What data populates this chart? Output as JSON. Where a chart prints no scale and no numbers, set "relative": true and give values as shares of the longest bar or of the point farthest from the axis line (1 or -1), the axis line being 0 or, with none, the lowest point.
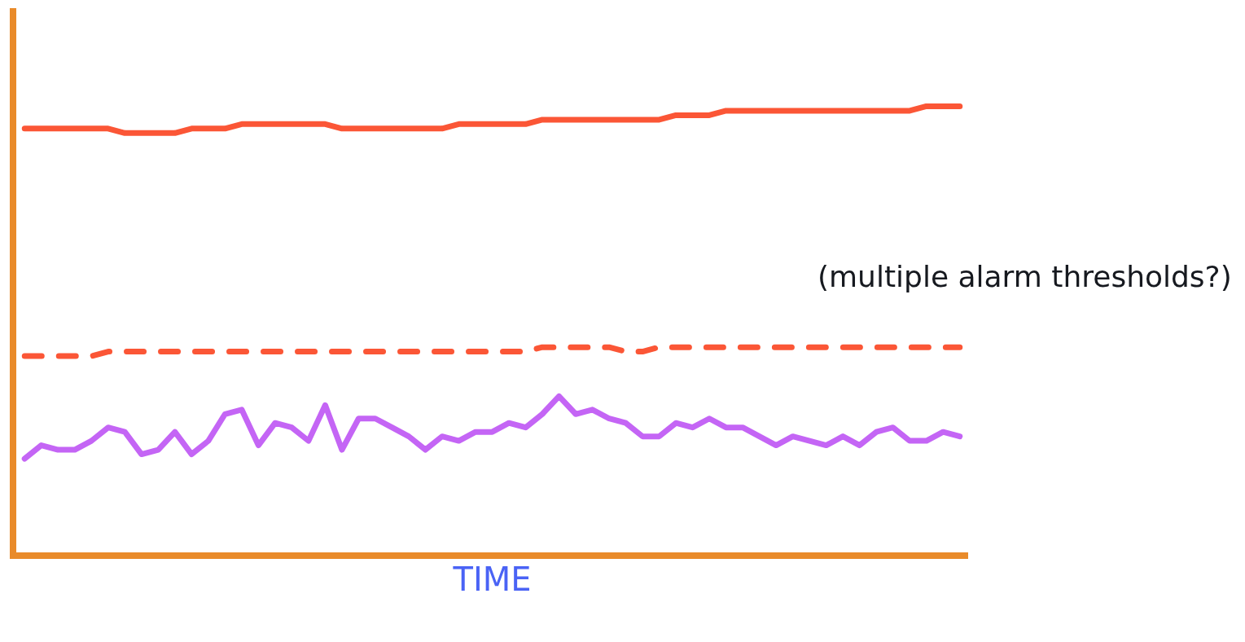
{
  "chart_data": {
    "type": "line",
    "relative": true,
    "xlabel": "TIME",
    "annotations": [
      "(multiple alarm thresholds?)"
    ],
    "marker": "none",
    "categories": [
      null,
      null,
      null,
      null,
      null,
      null,
      null,
      null,
      null,
      null,
      null,
      null,
      null,
      null,
      null,
      null,
      null,
      null,
      null,
      null,
      null,
      null,
      null,
      null,
      null,
      null,
      null,
      null,
      null,
      null,
      null,
      null,
      null,
      null,
      null,
      null,
      null,
      null,
      null,
      null,
      null,
      null,
      null,
      null,
      null,
      null,
      null,
      null,
      null,
      null,
      null,
      null,
      null,
      null,
      null,
      null,
      null
    ],
    "series": [
      {
        "color": "#fb5636",
        "line_style": "solid",
        "values": [
          0.95,
          0.95,
          0.95,
          0.95,
          0.95,
          0.95,
          0.94,
          0.94,
          0.94,
          0.94,
          0.95,
          0.95,
          0.95,
          0.96,
          0.96,
          0.96,
          0.96,
          0.96,
          0.96,
          0.95,
          0.95,
          0.95,
          0.95,
          0.95,
          0.95,
          0.95,
          0.96,
          0.96,
          0.96,
          0.96,
          0.96,
          0.97,
          0.97,
          0.97,
          0.97,
          0.97,
          0.97,
          0.97,
          0.97,
          0.98,
          0.98,
          0.98,
          0.99,
          0.99,
          0.99,
          0.99,
          0.99,
          0.99,
          0.99,
          0.99,
          0.99,
          0.99,
          0.99,
          0.99,
          1.0,
          1.0,
          1.0
        ]
      },
      {
        "color": "#fb5636",
        "line_style": "dashed",
        "values": [
          0.44,
          0.44,
          0.44,
          0.44,
          0.44,
          0.45,
          0.45,
          0.45,
          0.45,
          0.45,
          0.45,
          0.45,
          0.45,
          0.45,
          0.45,
          0.45,
          0.45,
          0.45,
          0.45,
          0.45,
          0.45,
          0.45,
          0.45,
          0.45,
          0.45,
          0.45,
          0.45,
          0.45,
          0.45,
          0.45,
          0.45,
          0.46,
          0.46,
          0.46,
          0.46,
          0.46,
          0.45,
          0.45,
          0.46,
          0.46,
          0.46,
          0.46,
          0.46,
          0.46,
          0.46,
          0.46,
          0.46,
          0.46,
          0.46,
          0.46,
          0.46,
          0.46,
          0.46,
          0.46,
          0.46,
          0.46,
          0.46
        ]
      },
      {
        "color": "#c465f5",
        "line_style": "solid",
        "values": [
          0.21,
          0.24,
          0.23,
          0.23,
          0.25,
          0.28,
          0.27,
          0.22,
          0.23,
          0.27,
          0.22,
          0.25,
          0.31,
          0.32,
          0.24,
          0.29,
          0.28,
          0.25,
          0.33,
          0.23,
          0.3,
          0.3,
          0.28,
          0.26,
          0.23,
          0.26,
          0.25,
          0.27,
          0.27,
          0.29,
          0.28,
          0.31,
          0.35,
          0.31,
          0.32,
          0.3,
          0.29,
          0.26,
          0.26,
          0.29,
          0.28,
          0.3,
          0.28,
          0.28,
          0.26,
          0.24,
          0.26,
          0.25,
          0.24,
          0.26,
          0.24,
          0.27,
          0.28,
          0.25,
          0.25,
          0.27,
          0.26
        ]
      }
    ]
  }
}
